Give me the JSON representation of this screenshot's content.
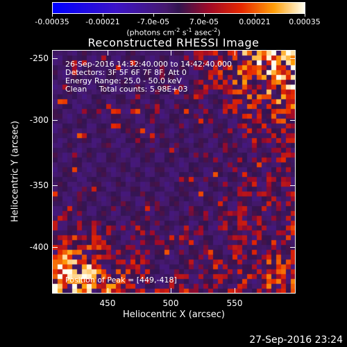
{
  "colorbar": {
    "ticks": [
      "-0.00035",
      "-0.00021",
      "-7.0e-05",
      "7.0e-05",
      "0.00021",
      "0.00035"
    ],
    "units_prefix": "(photons cm",
    "units_sup1": "-2",
    "units_mid1": " s",
    "units_sup2": "-1",
    "units_mid2": " asec",
    "units_sup3": "-2",
    "units_suffix": ")"
  },
  "title": "Reconstructed RHESSI Image",
  "info": {
    "line1": "26-Sep-2016 14:32:40.000 to 14:42:40.000",
    "line2": "Detectors: 3F 5F 6F 7F 8F, Att 0",
    "line3": "Energy Range: 25.0 - 50.0 keV",
    "line4": "Clean     Total counts: 5.98E+03",
    "peak": "Position of Peak = [449,-418]"
  },
  "axes": {
    "xlabel": "Heliocentric X (arcsec)",
    "ylabel": "Heliocentric Y (arcsec)",
    "xticks": [
      "450",
      "500",
      "550"
    ],
    "yticks": [
      "-250",
      "-300",
      "-350",
      "-400"
    ]
  },
  "timestamp": "27-Sep-2016 23:24",
  "colors": {
    "background": "#000000",
    "colormap_low": "#0000ff",
    "colormap_mid": "#3a1a6a",
    "colormap_high": "#ffff66"
  }
}
